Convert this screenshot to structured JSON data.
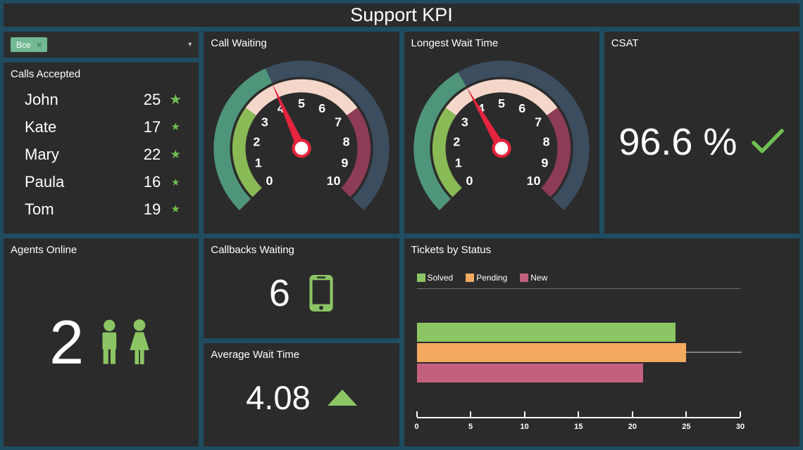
{
  "header": {
    "title": "Support KPI"
  },
  "filter": {
    "selected_tag": "Все",
    "remove_icon": "×",
    "caret_icon": "▾"
  },
  "panels": {
    "calls_accepted": {
      "title": "Calls Accepted",
      "star_icon": "★",
      "rows": [
        {
          "name": "John",
          "calls": "25",
          "star_size": 20
        },
        {
          "name": "Kate",
          "calls": "17",
          "star_size": 15
        },
        {
          "name": "Mary",
          "calls": "22",
          "star_size": 17
        },
        {
          "name": "Paula",
          "calls": "16",
          "star_size": 14
        },
        {
          "name": "Tom",
          "calls": "19",
          "star_size": 15
        }
      ]
    },
    "csat": {
      "title": "CSAT",
      "value": "96.6 %"
    },
    "agents_online": {
      "title": "Agents Online",
      "value": "2"
    },
    "callbacks_waiting": {
      "title": "Callbacks Waiting",
      "value": "6"
    },
    "average_wait_time": {
      "title": "Average Wait Time",
      "value": "4.08",
      "trend": "up"
    }
  },
  "colors": {
    "background": "#1f4c61",
    "panel": "#2b2b2b",
    "accent_green": "#8cc563",
    "star_green": "#6fbf52",
    "tag_green": "#72b893",
    "check_green": "#6fbf52"
  },
  "chart_data": [
    {
      "type": "gauge",
      "title": "Call Waiting",
      "min": 0,
      "max": 10,
      "value": 4.1,
      "tick_labels": [
        0,
        1,
        2,
        3,
        4,
        5,
        6,
        7,
        8,
        9,
        10
      ],
      "segments": [
        {
          "from": 0,
          "to": 3,
          "color": "#8aba55"
        },
        {
          "from": 3,
          "to": 7,
          "color": "#f4d7c9"
        },
        {
          "from": 7,
          "to": 10,
          "color": "#8e3c55"
        }
      ],
      "progress_color": "#4e9579",
      "track_color": "#3d4d60",
      "needle_color": "#e5243d"
    },
    {
      "type": "gauge",
      "title": "Longest Wait Time",
      "min": 0,
      "max": 10,
      "value": 3.9,
      "tick_labels": [
        0,
        1,
        2,
        3,
        4,
        5,
        6,
        7,
        8,
        9,
        10
      ],
      "segments": [
        {
          "from": 0,
          "to": 3,
          "color": "#8aba55"
        },
        {
          "from": 3,
          "to": 7,
          "color": "#f4d7c9"
        },
        {
          "from": 7,
          "to": 10,
          "color": "#8e3c55"
        }
      ],
      "progress_color": "#4e9579",
      "track_color": "#3d4d60",
      "needle_color": "#e5243d"
    },
    {
      "type": "bar",
      "orientation": "horizontal",
      "title": "Tickets by Status",
      "categories": [
        "Solved",
        "Pending",
        "New"
      ],
      "values": [
        24,
        25,
        21
      ],
      "bar_colors": [
        "#8cc563",
        "#f3a960",
        "#c2607e"
      ],
      "xlim": [
        0,
        30
      ],
      "xticks": [
        0,
        5,
        10,
        15,
        20,
        25,
        30
      ],
      "legend_position": "top",
      "grid": false
    }
  ]
}
